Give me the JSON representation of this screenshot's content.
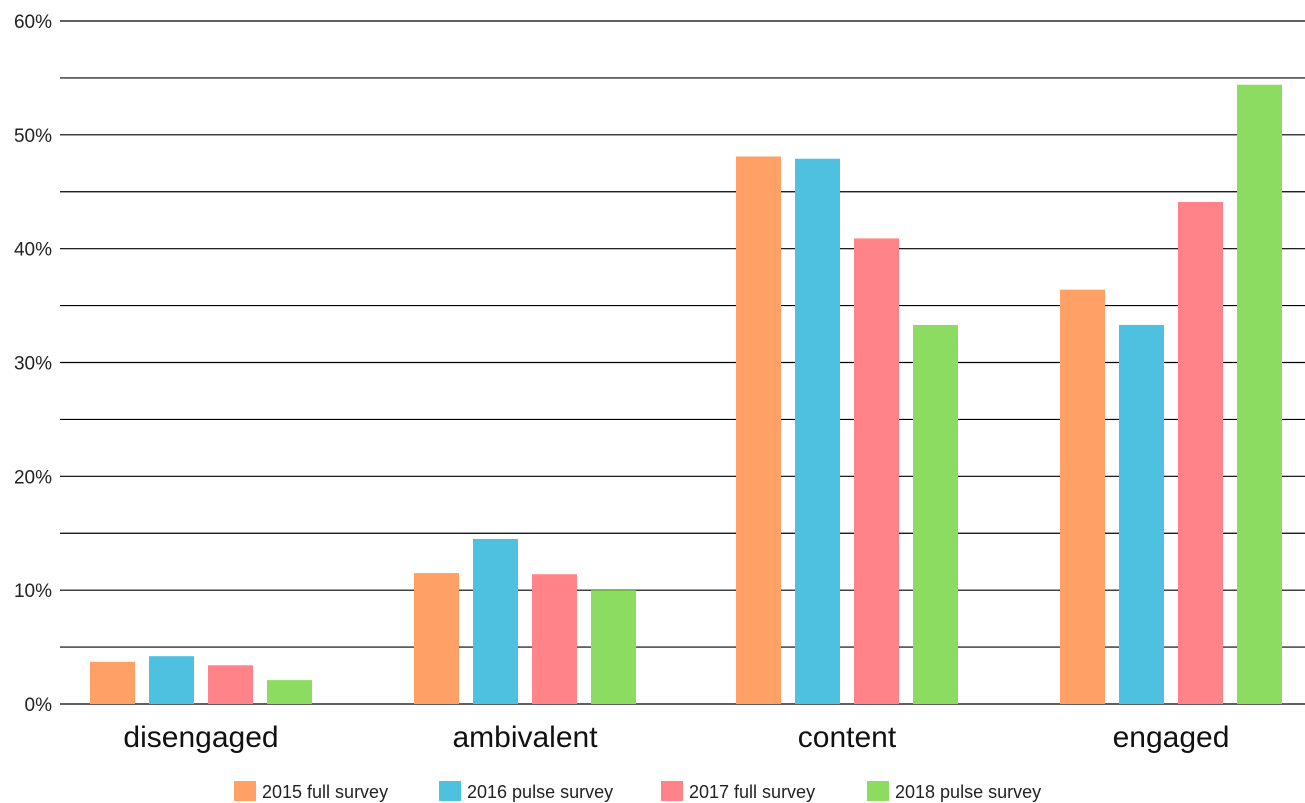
{
  "chart_data": {
    "type": "bar",
    "title": "",
    "xlabel": "",
    "ylabel": "",
    "categories": [
      "disengaged",
      "ambivalent",
      "content",
      "engaged"
    ],
    "series": [
      {
        "name": "2015 full survey",
        "color": "#FFA066",
        "values": [
          3.7,
          11.5,
          48.1,
          36.4
        ]
      },
      {
        "name": "2016 pulse survey",
        "color": "#4FC1E0",
        "values": [
          4.2,
          14.5,
          47.9,
          33.3
        ]
      },
      {
        "name": "2017 full survey",
        "color": "#FF8389",
        "values": [
          3.4,
          11.4,
          40.9,
          44.1
        ]
      },
      {
        "name": "2018 pulse survey",
        "color": "#8CDC62",
        "values": [
          2.1,
          10.0,
          33.3,
          54.4
        ]
      }
    ],
    "ylim": [
      0,
      60
    ],
    "yticks": [
      "0%",
      "10%",
      "20%",
      "30%",
      "40%",
      "50%",
      "60%"
    ],
    "grid": true,
    "legend_position": "bottom-center"
  }
}
